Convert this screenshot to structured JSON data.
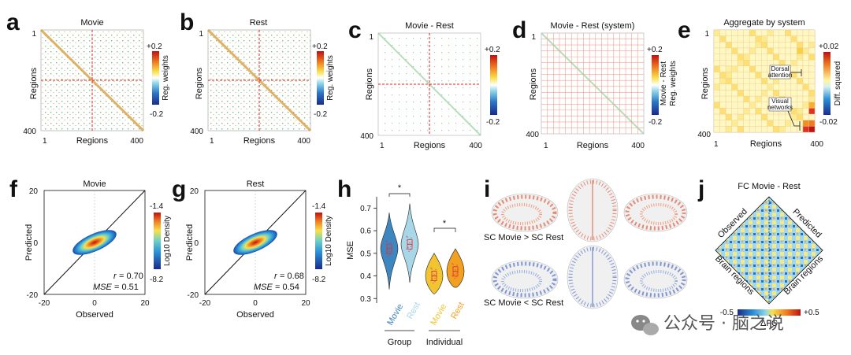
{
  "panels": {
    "a": {
      "letter": "a",
      "title": "Movie",
      "ylabel": "Regions",
      "xlabel": "Regions",
      "tick_start": "1",
      "tick_end": "400",
      "cb_max": "+0.2",
      "cb_min": "-0.2",
      "cb_label": "Reg. weights"
    },
    "b": {
      "letter": "b",
      "title": "Rest",
      "ylabel": "Regions",
      "xlabel": "Regions",
      "tick_start": "1",
      "tick_end": "400",
      "cb_max": "+0.2",
      "cb_min": "-0.2",
      "cb_label": "Reg. weights"
    },
    "c": {
      "letter": "c",
      "title": "Movie - Rest",
      "ylabel": "Regions",
      "xlabel": "Regions",
      "tick_start": "1",
      "tick_end": "400",
      "cb_max": "+0.2",
      "cb_min": "-0.2"
    },
    "d": {
      "letter": "d",
      "title": "Movie - Rest (system)",
      "ylabel": "Regions",
      "xlabel": "Regions",
      "tick_start": "1",
      "tick_end": "400",
      "cb_max": "+0.2",
      "cb_min": "-0.2",
      "cb_label1": "Movie - Rest",
      "cb_label2": "Reg. weights"
    },
    "e": {
      "letter": "e",
      "title": "Aggregate by system",
      "ylabel": "Regions",
      "xlabel": "Regions",
      "tick_start": "1",
      "tick_end": "400",
      "cb_max": "+0.02",
      "cb_min": "-0.02",
      "cb_label": "Diff. squared",
      "annot1_line1": "Dorsal",
      "annot1_line2": "attention",
      "annot2_line1": "Visual",
      "annot2_line2": "networks"
    },
    "f": {
      "letter": "f",
      "title": "Movie",
      "ylabel": "Predicted",
      "xlabel": "Observed",
      "y_top": "20",
      "y_mid": "0",
      "y_bot": "-20",
      "x_left": "-20",
      "x_mid": "0",
      "x_right": "20",
      "cb_max": "-1.4",
      "cb_min": "-8.2",
      "cb_label": "Log10 Density",
      "r_label": "r",
      "r_value": "= 0.70",
      "mse_label": "MSE",
      "mse_value": "= 0.51"
    },
    "g": {
      "letter": "g",
      "title": "Rest",
      "ylabel": "Predicted",
      "xlabel": "Observed",
      "y_top": "20",
      "y_mid": "0",
      "y_bot": "-20",
      "x_left": "-20",
      "x_mid": "0",
      "x_right": "20",
      "cb_max": "-1.4",
      "cb_min": "-8.2",
      "cb_label": "Log10 Density",
      "r_label": "r",
      "r_value": "= 0.68",
      "mse_label": "MSE",
      "mse_value": "= 0.54"
    },
    "h": {
      "letter": "h",
      "ylabel": "MSE",
      "yticks": [
        "0.7",
        "0.6",
        "0.5",
        "0.4",
        "0.3"
      ],
      "star": "*",
      "cat1": "Movie",
      "cat2": "Rest",
      "cat3": "Movie",
      "cat4": "Rest",
      "group1": "Group",
      "group2": "Individual"
    },
    "i": {
      "letter": "i",
      "label_top": "SC Movie > SC Rest",
      "label_bot": "SC Movie < SC Rest"
    },
    "j": {
      "letter": "j",
      "title": "FC Movie - Rest",
      "side_tl": "Observed",
      "side_tr": "Predicted",
      "side_bl": "Brain regions",
      "side_br": "Brain regions",
      "cb_min": "-0.5",
      "cb_max": "+0.5",
      "cb_label": "ΔFC"
    }
  },
  "chart_data": [
    {
      "type": "heatmap",
      "panel": "a",
      "title": "Movie",
      "xlabel": "Regions",
      "ylabel": "Regions",
      "range": [
        1,
        400
      ],
      "clim": [
        -0.2,
        0.2
      ]
    },
    {
      "type": "heatmap",
      "panel": "b",
      "title": "Rest",
      "xlabel": "Regions",
      "ylabel": "Regions",
      "range": [
        1,
        400
      ],
      "clim": [
        -0.2,
        0.2
      ]
    },
    {
      "type": "heatmap",
      "panel": "c",
      "title": "Movie - Rest",
      "xlabel": "Regions",
      "ylabel": "Regions",
      "range": [
        1,
        400
      ],
      "clim": [
        -0.2,
        0.2
      ]
    },
    {
      "type": "heatmap",
      "panel": "d",
      "title": "Movie - Rest (system)",
      "xlabel": "Regions",
      "ylabel": "Regions",
      "range": [
        1,
        400
      ],
      "clim": [
        -0.2,
        0.2
      ]
    },
    {
      "type": "heatmap",
      "panel": "e",
      "title": "Aggregate by system",
      "xlabel": "Regions",
      "ylabel": "Regions",
      "range": [
        1,
        400
      ],
      "clim": [
        -0.02,
        0.02
      ]
    },
    {
      "type": "scatter",
      "panel": "f",
      "title": "Movie",
      "xlabel": "Observed",
      "ylabel": "Predicted",
      "xlim": [
        -20,
        20
      ],
      "ylim": [
        -20,
        20
      ],
      "r": 0.7,
      "mse": 0.51,
      "clim": [
        -8.2,
        -1.4
      ]
    },
    {
      "type": "scatter",
      "panel": "g",
      "title": "Rest",
      "xlabel": "Observed",
      "ylabel": "Predicted",
      "xlim": [
        -20,
        20
      ],
      "ylim": [
        -20,
        20
      ],
      "r": 0.68,
      "mse": 0.54,
      "clim": [
        -8.2,
        -1.4
      ]
    },
    {
      "type": "violin",
      "panel": "h",
      "ylabel": "MSE",
      "ylim": [
        0.28,
        0.75
      ],
      "categories": [
        "Movie",
        "Rest",
        "Movie",
        "Rest"
      ],
      "groups": [
        "Group",
        "Group",
        "Individual",
        "Individual"
      ],
      "medians": [
        0.52,
        0.54,
        0.4,
        0.42
      ],
      "mins": [
        0.34,
        0.37,
        0.32,
        0.35
      ],
      "maxs": [
        0.68,
        0.72,
        0.5,
        0.52
      ],
      "colors": [
        "#3e86c0",
        "#a8d8e8",
        "#f2c530",
        "#f2a020"
      ]
    },
    {
      "type": "heatmap",
      "panel": "j",
      "title": "FC Movie - Rest",
      "clim": [
        -0.5,
        0.5
      ]
    }
  ],
  "watermark": "公众号 · 脑之说"
}
